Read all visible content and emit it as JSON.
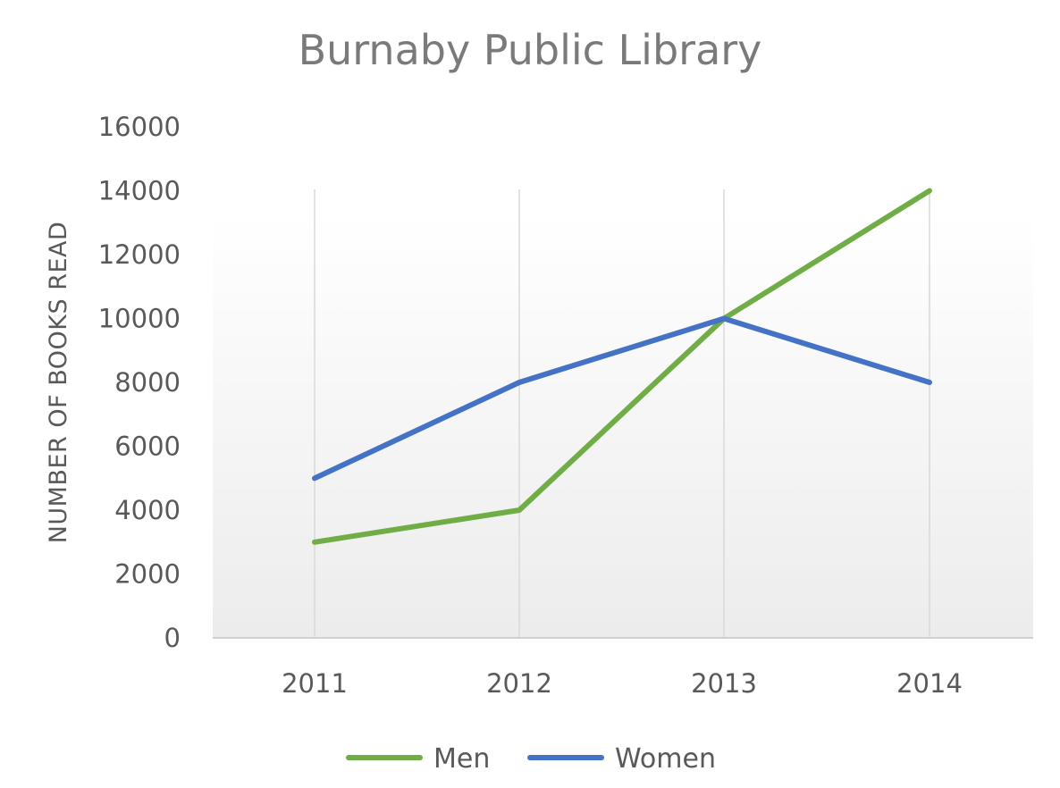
{
  "chart_data": {
    "type": "line",
    "title": "Burnaby Public Library",
    "xlabel": "",
    "ylabel": "NUMBER OF BOOKS READ",
    "categories": [
      "2011",
      "2012",
      "2013",
      "2014"
    ],
    "ylim": [
      0,
      16000
    ],
    "yticks": [
      "0",
      "2000",
      "4000",
      "6000",
      "8000",
      "10000",
      "12000",
      "14000",
      "16000"
    ],
    "series": [
      {
        "name": "Men",
        "color": "#70ad47",
        "values": [
          3000,
          4000,
          10000,
          14000
        ]
      },
      {
        "name": "Women",
        "color": "#4472c4",
        "values": [
          5000,
          8000,
          10000,
          8000
        ]
      }
    ],
    "grid": "vertical",
    "legend": "bottom"
  }
}
